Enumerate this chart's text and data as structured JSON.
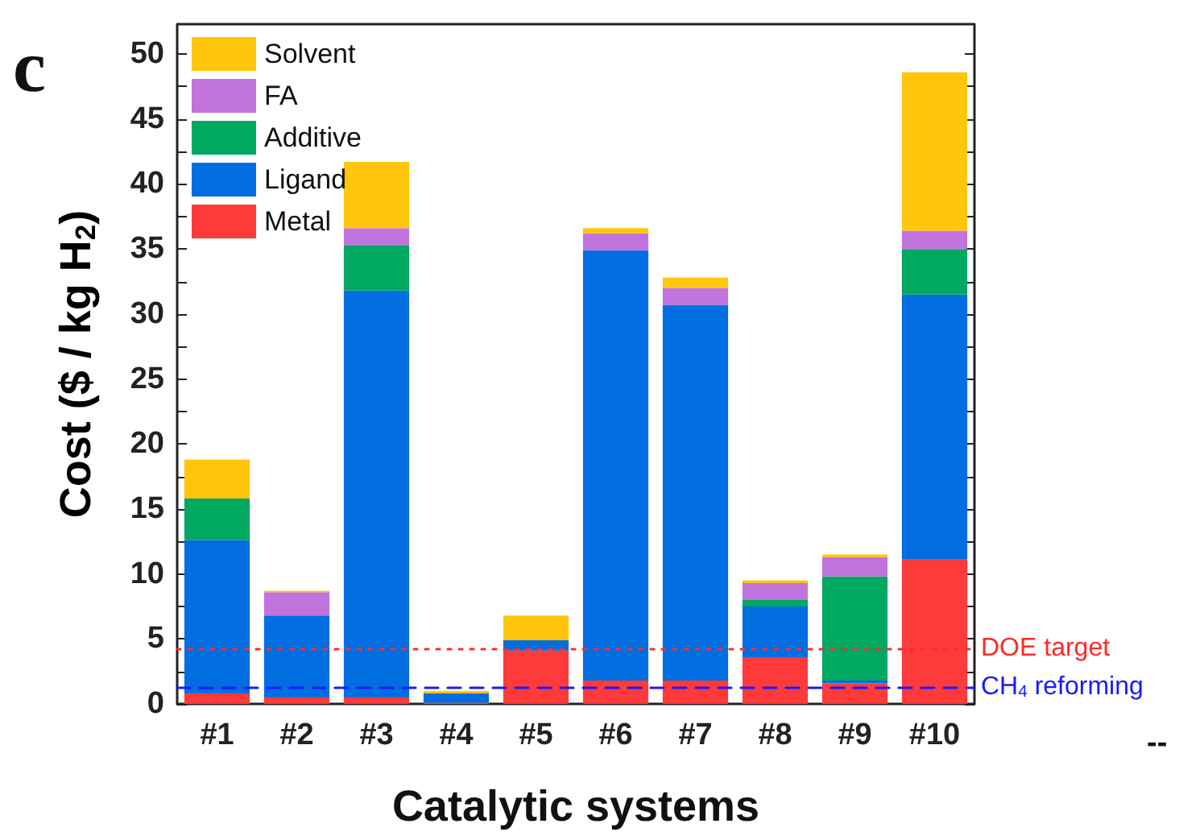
{
  "chart_data": {
    "type": "bar",
    "stacked": true,
    "xlabel": "Catalytic systems",
    "ylabel": "Cost ($ / kg H$_{2}$)",
    "categories": [
      "#1",
      "#2",
      "#3",
      "#4",
      "#5",
      "#6",
      "#7",
      "#8",
      "#9",
      "#10"
    ],
    "series": [
      {
        "name": "Metal",
        "color": "#ff3a3a",
        "values": [
          0.8,
          0.5,
          0.5,
          0.1,
          4.1,
          1.8,
          1.8,
          3.6,
          1.6,
          11.1
        ]
      },
      {
        "name": "Ligand",
        "color": "#006ee0",
        "values": [
          11.8,
          6.3,
          31.3,
          0.7,
          0.8,
          33.1,
          28.9,
          3.9,
          0.2,
          20.4
        ]
      },
      {
        "name": "Additive",
        "color": "#00a862",
        "values": [
          3.2,
          0,
          3.5,
          0,
          0,
          0,
          0,
          0.5,
          8.0,
          3.5
        ]
      },
      {
        "name": "FA",
        "color": "#c173dd",
        "values": [
          0,
          1.8,
          1.3,
          0,
          0,
          1.3,
          1.3,
          1.3,
          1.5,
          1.4
        ]
      },
      {
        "name": "Solvent",
        "color": "#ffc60b",
        "values": [
          3.0,
          0.1,
          5.1,
          0.2,
          1.9,
          0.4,
          0.8,
          0.2,
          0.2,
          12.2
        ]
      }
    ],
    "ylim": [
      0,
      52.3
    ],
    "yticks": [
      0,
      {
        "value": 2.5,
        "label": null
      },
      5,
      {
        "value": 7.5,
        "label": null
      },
      10,
      {
        "value": 12.5,
        "label": null
      },
      15,
      {
        "value": 17.5,
        "label": null
      },
      20,
      {
        "value": 22.5,
        "label": null
      },
      25,
      {
        "value": 27.5,
        "label": null
      },
      30,
      {
        "value": 32.5,
        "label": null
      },
      35,
      {
        "value": 37.5,
        "label": null
      },
      40,
      {
        "value": 42.5,
        "label": null
      },
      45,
      {
        "value": 47.5,
        "label": null
      },
      50
    ],
    "ref_lines": [
      {
        "axis": "y",
        "value": 4.3,
        "label": "DOE target",
        "color": "#ff2a2a",
        "line_style": "dotted"
      },
      {
        "axis": "y",
        "value": 1.3,
        "label": "CH$_{4}$ reforming",
        "color": "#1a1aff",
        "line_style": "dashed"
      }
    ],
    "annotations": [
      "c",
      "--"
    ],
    "legend": "top left",
    "grid": false
  }
}
